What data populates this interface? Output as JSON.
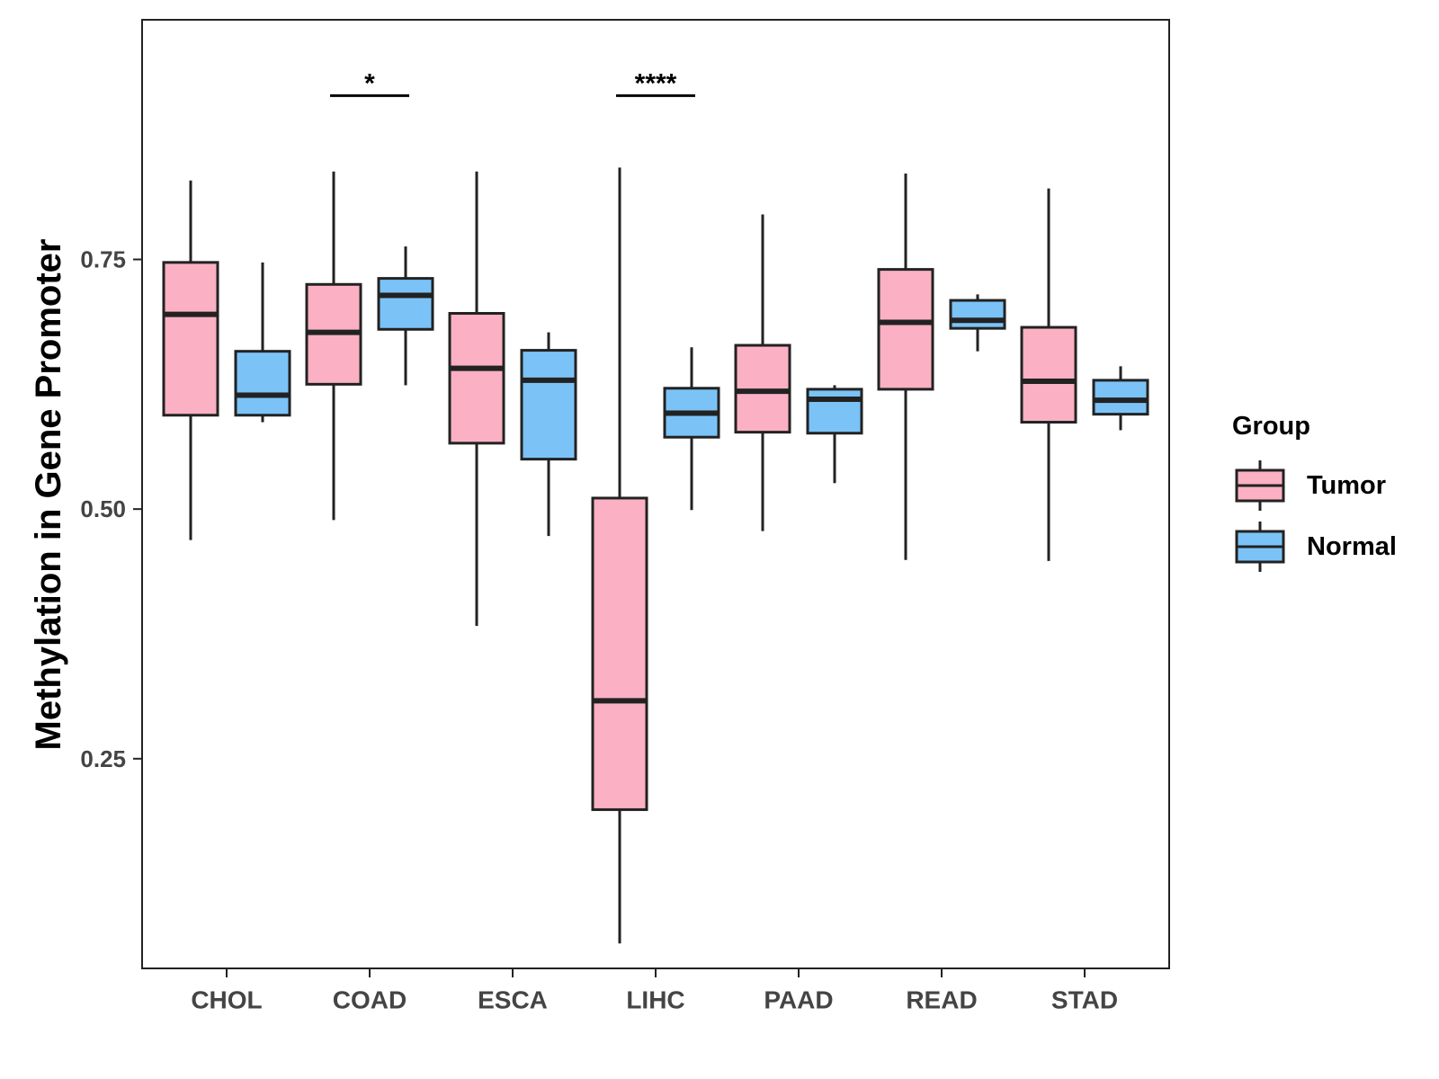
{
  "chart_data": {
    "type": "boxplot",
    "title": "",
    "xlabel": "",
    "ylabel": "Methylation in Gene Promoter",
    "ylim": [
      0.04,
      0.99
    ],
    "yticks": [
      0.25,
      0.5,
      0.75
    ],
    "ytick_labels": [
      "0.25",
      "0.50",
      "0.75"
    ],
    "categories": [
      "CHOL",
      "COAD",
      "ESCA",
      "LIHC",
      "PAAD",
      "READ",
      "STAD"
    ],
    "legend": {
      "title": "Group",
      "position": "right",
      "items": [
        {
          "name": "Tumor",
          "color": "#fbb1c3"
        },
        {
          "name": "Normal",
          "color": "#7bc3f7"
        }
      ]
    },
    "series": [
      {
        "name": "Tumor",
        "color": "#fbb1c3",
        "boxes": [
          {
            "category": "CHOL",
            "min": 0.469,
            "q1": 0.594,
            "median": 0.695,
            "q3": 0.747,
            "max": 0.829
          },
          {
            "category": "COAD",
            "min": 0.489,
            "q1": 0.625,
            "median": 0.677,
            "q3": 0.725,
            "max": 0.838
          },
          {
            "category": "ESCA",
            "min": 0.383,
            "q1": 0.566,
            "median": 0.641,
            "q3": 0.696,
            "max": 0.838
          },
          {
            "category": "LIHC",
            "min": 0.065,
            "q1": 0.199,
            "median": 0.308,
            "q3": 0.511,
            "max": 0.842
          },
          {
            "category": "PAAD",
            "min": 0.478,
            "q1": 0.577,
            "median": 0.618,
            "q3": 0.664,
            "max": 0.795
          },
          {
            "category": "READ",
            "min": 0.449,
            "q1": 0.62,
            "median": 0.687,
            "q3": 0.74,
            "max": 0.836
          },
          {
            "category": "STAD",
            "min": 0.448,
            "q1": 0.587,
            "median": 0.628,
            "q3": 0.682,
            "max": 0.821
          }
        ]
      },
      {
        "name": "Normal",
        "color": "#7bc3f7",
        "boxes": [
          {
            "category": "CHOL",
            "min": 0.587,
            "q1": 0.594,
            "median": 0.614,
            "q3": 0.658,
            "max": 0.747
          },
          {
            "category": "COAD",
            "min": 0.624,
            "q1": 0.68,
            "median": 0.714,
            "q3": 0.731,
            "max": 0.763
          },
          {
            "category": "ESCA",
            "min": 0.473,
            "q1": 0.55,
            "median": 0.629,
            "q3": 0.659,
            "max": 0.677
          },
          {
            "category": "LIHC",
            "min": 0.499,
            "q1": 0.572,
            "median": 0.596,
            "q3": 0.621,
            "max": 0.662
          },
          {
            "category": "PAAD",
            "min": 0.526,
            "q1": 0.576,
            "median": 0.61,
            "q3": 0.62,
            "max": 0.624
          },
          {
            "category": "READ",
            "min": 0.658,
            "q1": 0.681,
            "median": 0.689,
            "q3": 0.709,
            "max": 0.715
          },
          {
            "category": "STAD",
            "min": 0.579,
            "q1": 0.595,
            "median": 0.609,
            "q3": 0.629,
            "max": 0.643
          }
        ]
      }
    ],
    "annotations": [
      {
        "category": "COAD",
        "label": "*",
        "y": 0.914
      },
      {
        "category": "LIHC",
        "label": "****",
        "y": 0.914
      }
    ]
  },
  "colors": {
    "tumor": "#fbb1c3",
    "normal": "#7bc3f7",
    "outline": "#222222",
    "axis": "#222222"
  }
}
